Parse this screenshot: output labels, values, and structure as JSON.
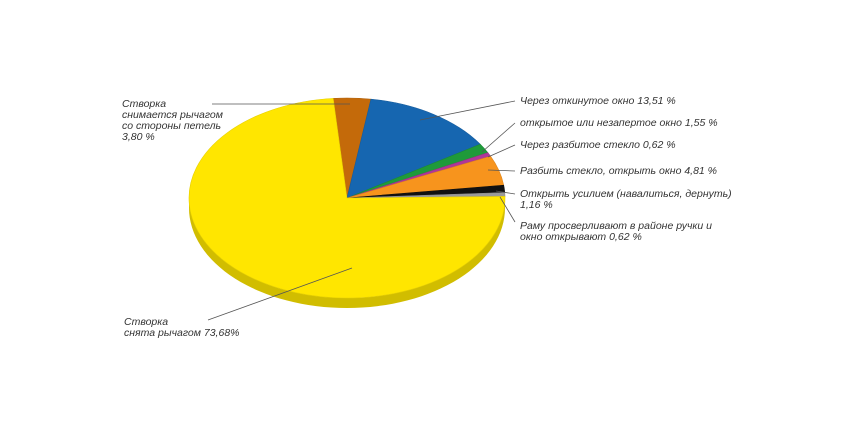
{
  "chart_data": {
    "type": "pie",
    "title": "",
    "slices": [
      {
        "label_lines": [
          "Створка",
          "снимается рычагом",
          "со стороны петель",
          "3,80 %"
        ],
        "value": 3.8,
        "color": "#c46a0a"
      },
      {
        "label_lines": [
          "Через откинутое окно  13,51 %"
        ],
        "value": 13.51,
        "color": "#1666b0"
      },
      {
        "label_lines": [
          "открытое или незапертое окно 1,55 %"
        ],
        "value": 1.55,
        "color": "#1f9a3a"
      },
      {
        "label_lines": [
          "Через разбитое стекло 0,62 %"
        ],
        "value": 0.62,
        "color": "#b0369a"
      },
      {
        "label_lines": [
          "Разбить стекло, открыть окно  4,81 %"
        ],
        "value": 4.81,
        "color": "#f7941d"
      },
      {
        "label_lines": [
          "Открыть усилием (навалиться, дернуть)",
          "1,16 %"
        ],
        "value": 1.16,
        "color": "#111111"
      },
      {
        "label_lines": [
          "Раму просверливают в районе ручки и",
          "окно открывают 0,62 %"
        ],
        "value": 0.62,
        "color": "#9a9a9a"
      },
      {
        "label_lines": [
          "Створка",
          "снята рычагом 73,68%"
        ],
        "value": 73.68,
        "color": "#ffe600"
      }
    ]
  }
}
